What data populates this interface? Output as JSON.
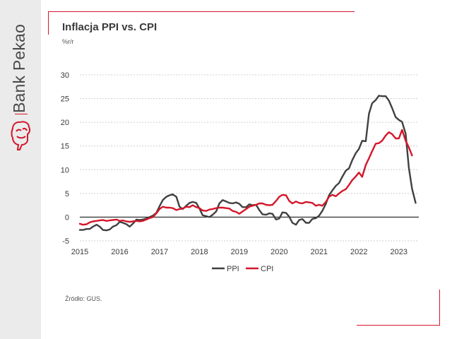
{
  "brand": {
    "name": "Bank Pekao"
  },
  "chart_data": {
    "type": "line",
    "title": "Inflacja PPI vs. CPI",
    "subtitle": "%r/r",
    "source": "Źródło: GUS.",
    "x_ticks": [
      "2015",
      "2016",
      "2017",
      "2018",
      "2019",
      "2020",
      "2021",
      "2022",
      "2023"
    ],
    "y_ticks": [
      "30",
      "25",
      "20",
      "15",
      "10",
      "5",
      "0",
      "-5"
    ],
    "ylim": [
      -5,
      30
    ],
    "xlim": [
      2015.0,
      2023.5
    ],
    "legend_position": "bottom",
    "series": [
      {
        "name": "PPI",
        "color": "#404040",
        "points": [
          [
            2015.0,
            -2.7
          ],
          [
            2015.08,
            -2.7
          ],
          [
            2015.17,
            -2.5
          ],
          [
            2015.25,
            -2.5
          ],
          [
            2015.33,
            -2.0
          ],
          [
            2015.42,
            -1.6
          ],
          [
            2015.5,
            -2.0
          ],
          [
            2015.58,
            -2.7
          ],
          [
            2015.67,
            -2.8
          ],
          [
            2015.75,
            -2.6
          ],
          [
            2015.83,
            -2.0
          ],
          [
            2015.92,
            -1.7
          ],
          [
            2016.0,
            -1.0
          ],
          [
            2016.08,
            -1.2
          ],
          [
            2016.17,
            -1.5
          ],
          [
            2016.25,
            -2.0
          ],
          [
            2016.33,
            -1.4
          ],
          [
            2016.42,
            -0.5
          ],
          [
            2016.5,
            -0.6
          ],
          [
            2016.58,
            -0.5
          ],
          [
            2016.67,
            -0.3
          ],
          [
            2016.75,
            0.0
          ],
          [
            2016.83,
            0.3
          ],
          [
            2016.92,
            0.9
          ],
          [
            2017.0,
            2.3
          ],
          [
            2017.08,
            3.6
          ],
          [
            2017.17,
            4.3
          ],
          [
            2017.25,
            4.6
          ],
          [
            2017.33,
            4.8
          ],
          [
            2017.42,
            4.3
          ],
          [
            2017.5,
            2.2
          ],
          [
            2017.58,
            1.7
          ],
          [
            2017.67,
            2.4
          ],
          [
            2017.75,
            3.0
          ],
          [
            2017.83,
            3.2
          ],
          [
            2017.92,
            3.0
          ],
          [
            2018.0,
            1.8
          ],
          [
            2018.08,
            0.4
          ],
          [
            2018.17,
            0.2
          ],
          [
            2018.25,
            0.0
          ],
          [
            2018.33,
            0.5
          ],
          [
            2018.42,
            1.2
          ],
          [
            2018.5,
            2.9
          ],
          [
            2018.58,
            3.6
          ],
          [
            2018.67,
            3.3
          ],
          [
            2018.75,
            3.0
          ],
          [
            2018.83,
            2.9
          ],
          [
            2018.92,
            3.1
          ],
          [
            2019.0,
            2.8
          ],
          [
            2019.08,
            2.1
          ],
          [
            2019.17,
            2.1
          ],
          [
            2019.25,
            2.7
          ],
          [
            2019.33,
            2.5
          ],
          [
            2019.42,
            2.6
          ],
          [
            2019.5,
            1.5
          ],
          [
            2019.58,
            0.6
          ],
          [
            2019.67,
            0.5
          ],
          [
            2019.75,
            0.8
          ],
          [
            2019.83,
            0.7
          ],
          [
            2019.92,
            -0.5
          ],
          [
            2020.0,
            -0.3
          ],
          [
            2020.08,
            1.0
          ],
          [
            2020.17,
            0.9
          ],
          [
            2020.25,
            0.1
          ],
          [
            2020.33,
            -1.2
          ],
          [
            2020.42,
            -1.6
          ],
          [
            2020.5,
            -0.6
          ],
          [
            2020.58,
            -0.4
          ],
          [
            2020.67,
            -1.2
          ],
          [
            2020.75,
            -1.2
          ],
          [
            2020.83,
            -0.4
          ],
          [
            2020.92,
            -0.2
          ],
          [
            2021.0,
            0.3
          ],
          [
            2021.08,
            1.3
          ],
          [
            2021.17,
            2.8
          ],
          [
            2021.25,
            4.6
          ],
          [
            2021.33,
            5.6
          ],
          [
            2021.42,
            6.6
          ],
          [
            2021.5,
            7.2
          ],
          [
            2021.58,
            8.5
          ],
          [
            2021.67,
            9.8
          ],
          [
            2021.75,
            10.3
          ],
          [
            2021.83,
            12.0
          ],
          [
            2021.92,
            13.5
          ],
          [
            2022.0,
            14.4
          ],
          [
            2022.08,
            16.1
          ],
          [
            2022.17,
            16.0
          ],
          [
            2022.25,
            21.8
          ],
          [
            2022.33,
            24.0
          ],
          [
            2022.42,
            24.7
          ],
          [
            2022.5,
            25.6
          ],
          [
            2022.58,
            25.5
          ],
          [
            2022.67,
            25.5
          ],
          [
            2022.75,
            24.6
          ],
          [
            2022.83,
            23.0
          ],
          [
            2022.92,
            21.1
          ],
          [
            2023.0,
            20.5
          ],
          [
            2023.08,
            20.1
          ],
          [
            2023.17,
            17.6
          ],
          [
            2023.25,
            10.4
          ],
          [
            2023.33,
            6.0
          ],
          [
            2023.42,
            3.0
          ]
        ]
      },
      {
        "name": "CPI",
        "color": "#d4162a",
        "points": [
          [
            2015.0,
            -1.4
          ],
          [
            2015.08,
            -1.6
          ],
          [
            2015.17,
            -1.5
          ],
          [
            2015.25,
            -1.1
          ],
          [
            2015.33,
            -0.9
          ],
          [
            2015.42,
            -0.8
          ],
          [
            2015.5,
            -0.7
          ],
          [
            2015.58,
            -0.6
          ],
          [
            2015.67,
            -0.8
          ],
          [
            2015.75,
            -0.7
          ],
          [
            2015.83,
            -0.6
          ],
          [
            2015.92,
            -0.5
          ],
          [
            2016.0,
            -0.8
          ],
          [
            2016.08,
            -0.7
          ],
          [
            2016.17,
            -0.9
          ],
          [
            2016.25,
            -1.0
          ],
          [
            2016.33,
            -0.9
          ],
          [
            2016.42,
            -0.8
          ],
          [
            2016.5,
            -0.9
          ],
          [
            2016.58,
            -0.8
          ],
          [
            2016.67,
            -0.5
          ],
          [
            2016.75,
            -0.2
          ],
          [
            2016.83,
            0.0
          ],
          [
            2016.92,
            0.8
          ],
          [
            2017.0,
            1.7
          ],
          [
            2017.08,
            2.2
          ],
          [
            2017.17,
            2.0
          ],
          [
            2017.25,
            2.0
          ],
          [
            2017.33,
            1.9
          ],
          [
            2017.42,
            1.5
          ],
          [
            2017.5,
            1.7
          ],
          [
            2017.58,
            1.8
          ],
          [
            2017.67,
            2.2
          ],
          [
            2017.75,
            2.1
          ],
          [
            2017.83,
            2.5
          ],
          [
            2017.92,
            2.1
          ],
          [
            2018.0,
            1.9
          ],
          [
            2018.08,
            1.4
          ],
          [
            2018.17,
            1.3
          ],
          [
            2018.25,
            1.6
          ],
          [
            2018.33,
            1.7
          ],
          [
            2018.42,
            1.9
          ],
          [
            2018.5,
            2.0
          ],
          [
            2018.58,
            2.0
          ],
          [
            2018.67,
            1.9
          ],
          [
            2018.75,
            1.8
          ],
          [
            2018.83,
            1.3
          ],
          [
            2018.92,
            1.1
          ],
          [
            2019.0,
            0.7
          ],
          [
            2019.08,
            1.2
          ],
          [
            2019.17,
            1.7
          ],
          [
            2019.25,
            2.2
          ],
          [
            2019.33,
            2.4
          ],
          [
            2019.42,
            2.6
          ],
          [
            2019.5,
            2.9
          ],
          [
            2019.58,
            2.9
          ],
          [
            2019.67,
            2.6
          ],
          [
            2019.75,
            2.5
          ],
          [
            2019.83,
            2.6
          ],
          [
            2019.92,
            3.4
          ],
          [
            2020.0,
            4.3
          ],
          [
            2020.08,
            4.7
          ],
          [
            2020.17,
            4.6
          ],
          [
            2020.25,
            3.4
          ],
          [
            2020.33,
            2.9
          ],
          [
            2020.42,
            3.3
          ],
          [
            2020.5,
            3.0
          ],
          [
            2020.58,
            2.9
          ],
          [
            2020.67,
            3.2
          ],
          [
            2020.75,
            3.1
          ],
          [
            2020.83,
            3.0
          ],
          [
            2020.92,
            2.4
          ],
          [
            2021.0,
            2.6
          ],
          [
            2021.08,
            2.4
          ],
          [
            2021.17,
            3.2
          ],
          [
            2021.25,
            4.3
          ],
          [
            2021.33,
            4.7
          ],
          [
            2021.42,
            4.4
          ],
          [
            2021.5,
            5.0
          ],
          [
            2021.58,
            5.5
          ],
          [
            2021.67,
            5.9
          ],
          [
            2021.75,
            6.8
          ],
          [
            2021.83,
            7.8
          ],
          [
            2021.92,
            8.6
          ],
          [
            2022.0,
            9.4
          ],
          [
            2022.08,
            8.5
          ],
          [
            2022.17,
            11.0
          ],
          [
            2022.25,
            12.4
          ],
          [
            2022.33,
            13.9
          ],
          [
            2022.42,
            15.5
          ],
          [
            2022.5,
            15.6
          ],
          [
            2022.58,
            16.1
          ],
          [
            2022.67,
            17.2
          ],
          [
            2022.75,
            17.9
          ],
          [
            2022.83,
            17.5
          ],
          [
            2022.92,
            16.6
          ],
          [
            2023.0,
            16.6
          ],
          [
            2023.08,
            18.4
          ],
          [
            2023.17,
            16.1
          ],
          [
            2023.25,
            14.7
          ],
          [
            2023.33,
            13.0
          ]
        ]
      }
    ]
  }
}
